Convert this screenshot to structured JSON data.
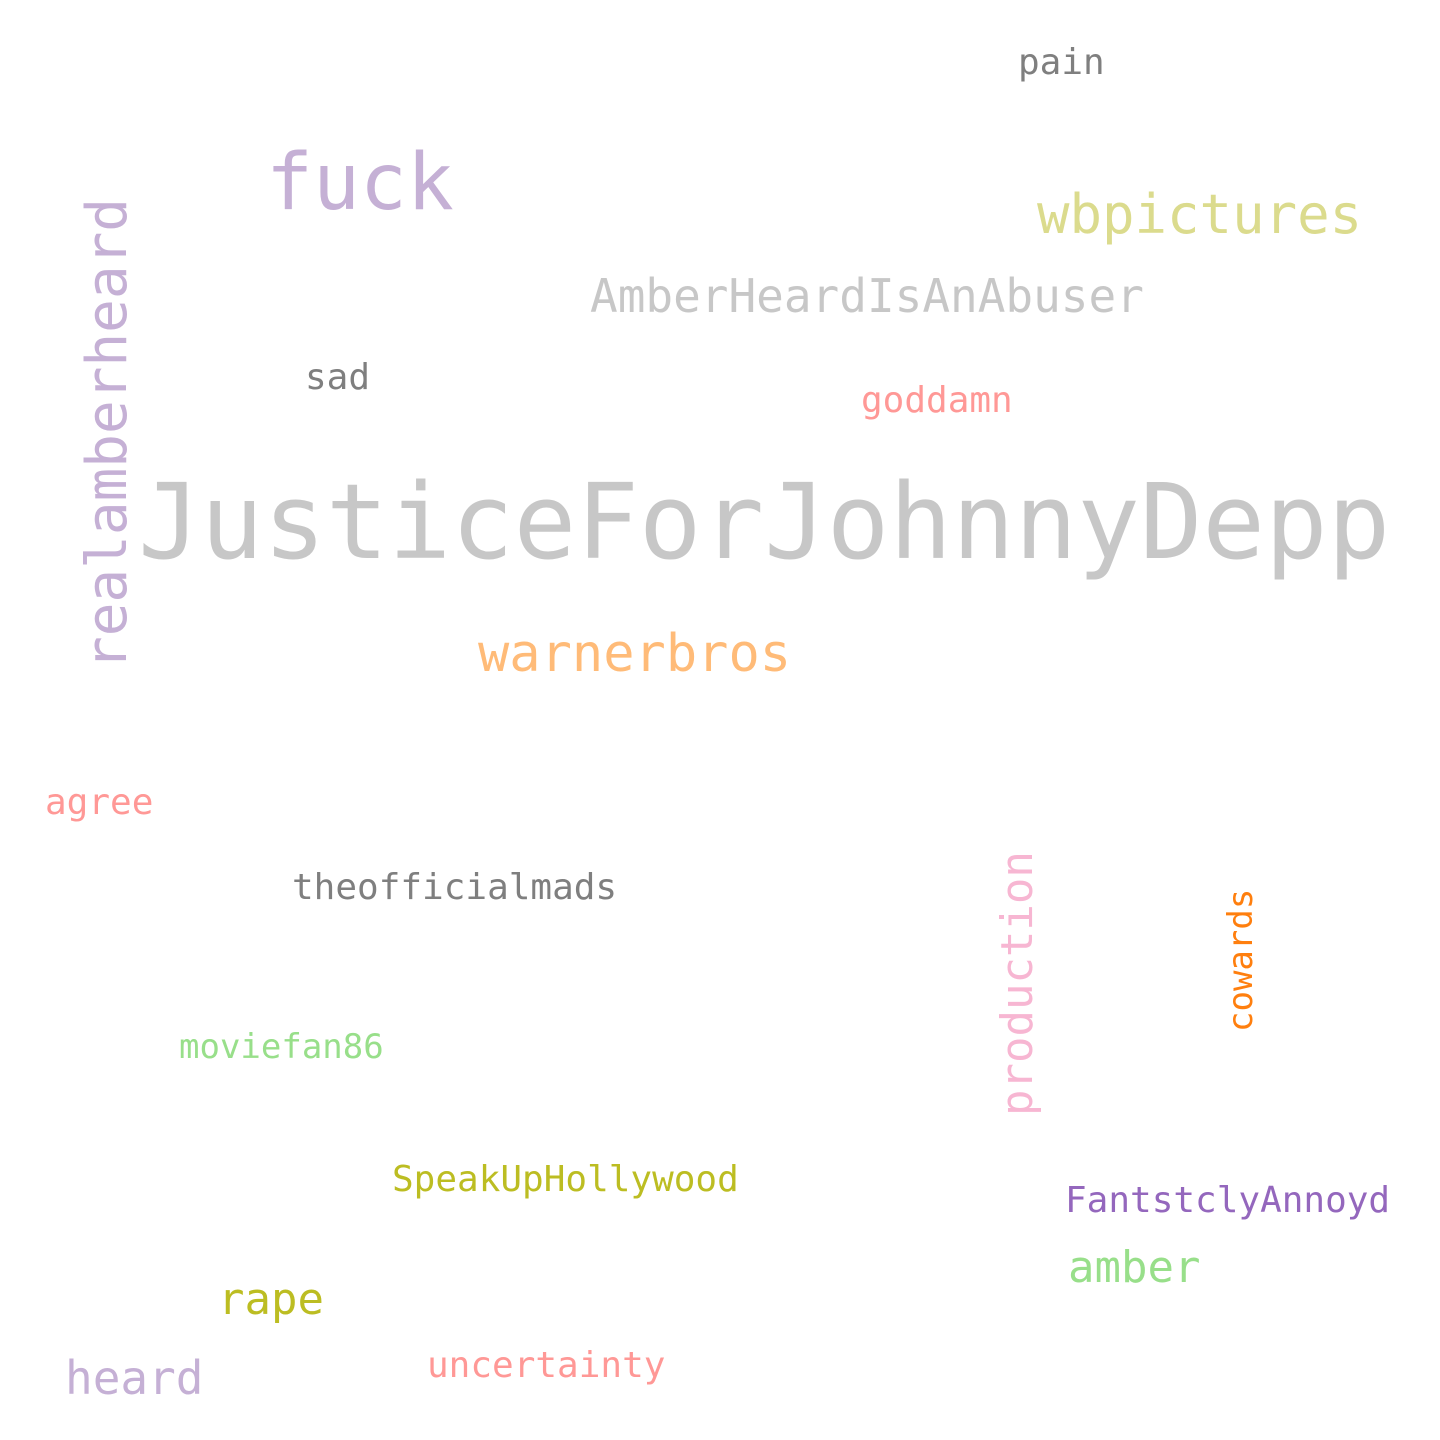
{
  "words": {
    "justice": {
      "text": "JusticeForJohnnyDepp",
      "color": "#c7c7c7"
    },
    "fuck": {
      "text": "fuck",
      "color": "#c5b0d5"
    },
    "realamberheard": {
      "text": "realamberheard",
      "color": "#c5b0d5"
    },
    "wbpictures": {
      "text": "wbpictures",
      "color": "#dbdb8d"
    },
    "warnerbros": {
      "text": "warnerbros",
      "color": "#ffbb78"
    },
    "amberheardisanabuser": {
      "text": "AmberHeardIsAnAbuser",
      "color": "#c7c7c7"
    },
    "production": {
      "text": "production",
      "color": "#f7b6d2"
    },
    "heard": {
      "text": "heard",
      "color": "#c5b0d5"
    },
    "rape": {
      "text": "rape",
      "color": "#bcbd22"
    },
    "amber": {
      "text": "amber",
      "color": "#98df8a"
    },
    "cowards": {
      "text": "cowards",
      "color": "#ff7f0e"
    },
    "speakuphollywood": {
      "text": "SpeakUpHollywood",
      "color": "#bcbd22"
    },
    "fantstclyannoyd": {
      "text": "FantstclyAnnoyd",
      "color": "#9467bd"
    },
    "theofficialmads": {
      "text": "theofficialmads",
      "color": "#7f7f7f"
    },
    "uncertainty": {
      "text": "uncertainty",
      "color": "#ff9896"
    },
    "pain": {
      "text": "pain",
      "color": "#7f7f7f"
    },
    "sad": {
      "text": "sad",
      "color": "#7f7f7f"
    },
    "goddamn": {
      "text": "goddamn",
      "color": "#ff9896"
    },
    "agree": {
      "text": "agree",
      "color": "#ff9896"
    },
    "moviefan86": {
      "text": "moviefan86",
      "color": "#98df8a"
    }
  }
}
